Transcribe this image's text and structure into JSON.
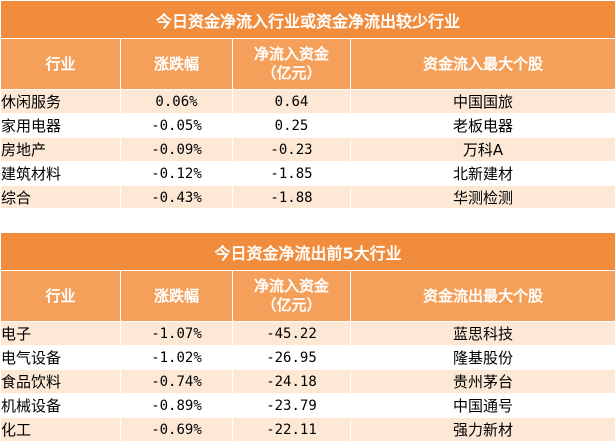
{
  "table1": {
    "title": "今日资金净流入行业或资金净流出较少行业",
    "headers": {
      "industry": "行业",
      "change": "涨跌幅",
      "flow_line1": "净流入资金",
      "flow_line2": "（亿元）",
      "top_stock": "资金流入最大个股"
    },
    "rows": [
      {
        "industry": "休闲服务",
        "change": "0.06%",
        "flow": "0.64",
        "stock": "中国国旅"
      },
      {
        "industry": "家用电器",
        "change": "-0.05%",
        "flow": "0.25",
        "stock": "老板电器"
      },
      {
        "industry": "房地产",
        "change": "-0.09%",
        "flow": "-0.23",
        "stock": "万科A"
      },
      {
        "industry": "建筑材料",
        "change": "-0.12%",
        "flow": "-1.85",
        "stock": "北新建材"
      },
      {
        "industry": "综合",
        "change": "-0.43%",
        "flow": "-1.88",
        "stock": "华测检测"
      }
    ]
  },
  "table2": {
    "title": "今日资金净流出前5大行业",
    "headers": {
      "industry": "行业",
      "change": "涨跌幅",
      "flow_line1": "净流入资金",
      "flow_line2": "（亿元）",
      "top_stock": "资金流出最大个股"
    },
    "rows": [
      {
        "industry": "电子",
        "change": "-1.07%",
        "flow": "-45.22",
        "stock": "蓝思科技"
      },
      {
        "industry": "电气设备",
        "change": "-1.02%",
        "flow": "-26.95",
        "stock": "隆基股份"
      },
      {
        "industry": "食品饮料",
        "change": "-0.74%",
        "flow": "-24.18",
        "stock": "贵州茅台"
      },
      {
        "industry": "机械设备",
        "change": "-0.89%",
        "flow": "-23.79",
        "stock": "中国通号"
      },
      {
        "industry": "化工",
        "change": "-0.69%",
        "flow": "-22.11",
        "stock": "强力新材"
      }
    ]
  }
}
